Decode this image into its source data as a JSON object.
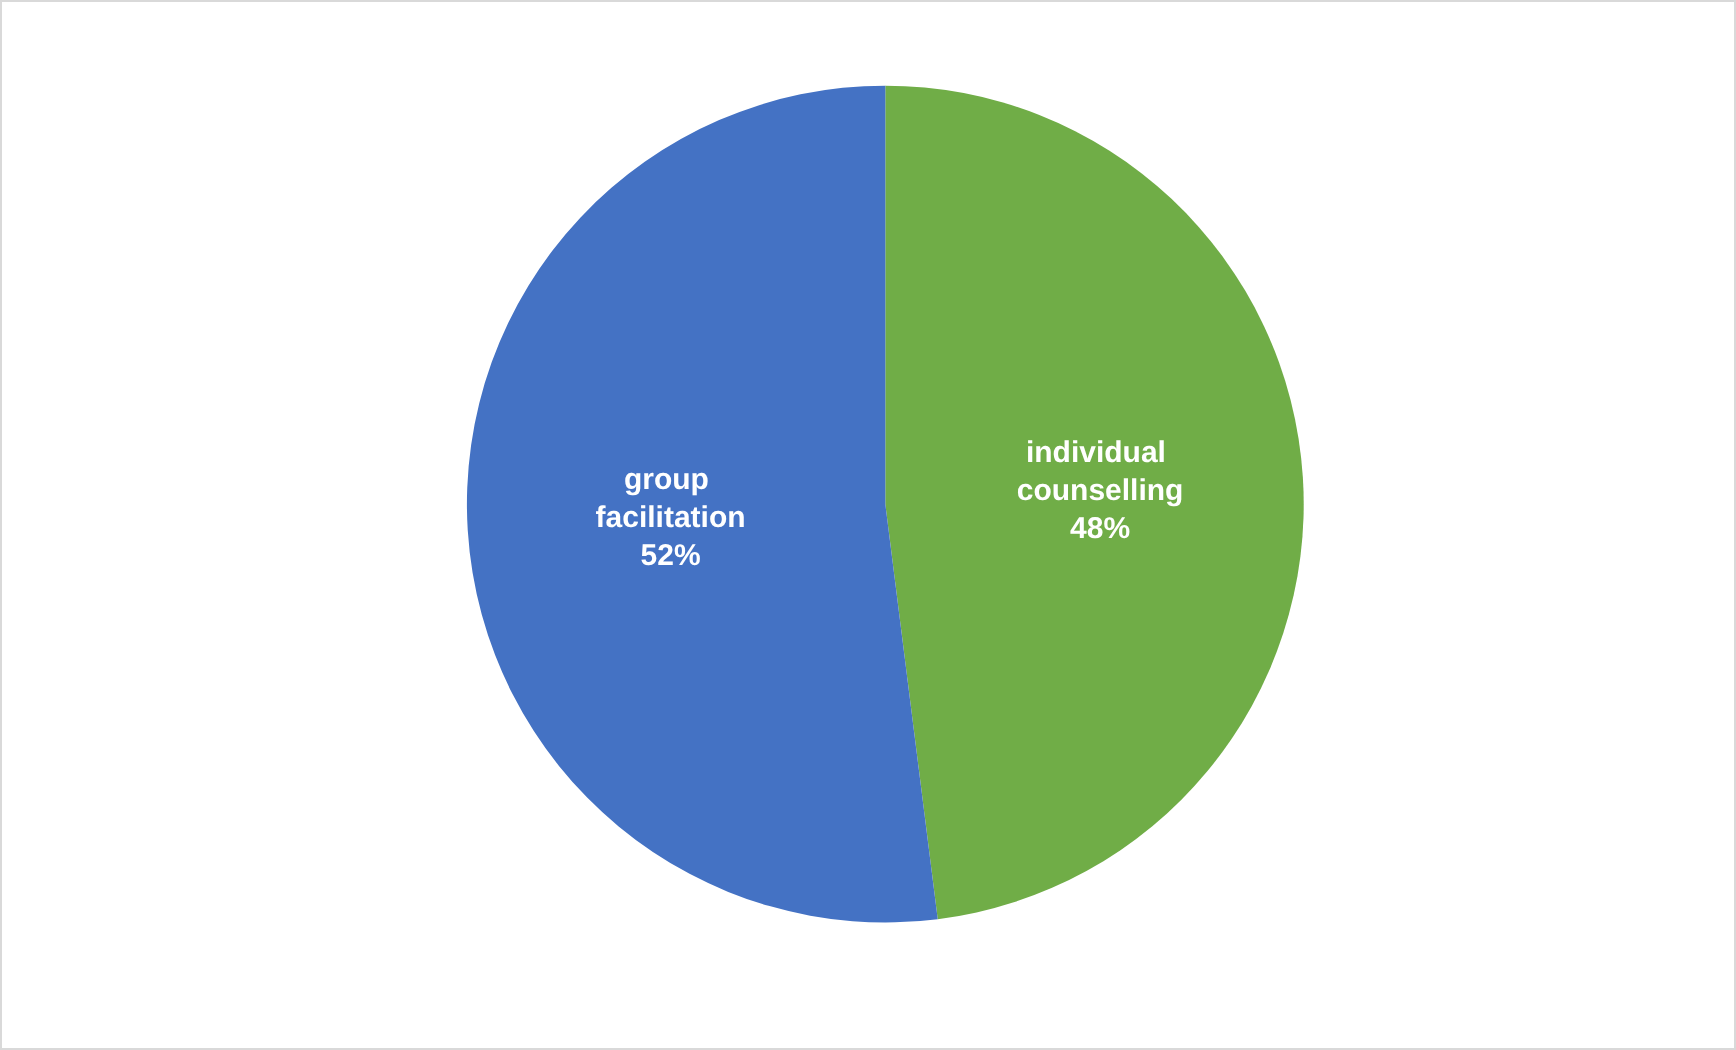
{
  "chart_data": {
    "type": "pie",
    "categories": [
      "individual counselling",
      "group facilitation"
    ],
    "values": [
      48,
      52
    ],
    "colors": [
      "#70ad47",
      "#4472c4"
    ],
    "value_labels": [
      "48%",
      "52%"
    ],
    "legend": false
  }
}
